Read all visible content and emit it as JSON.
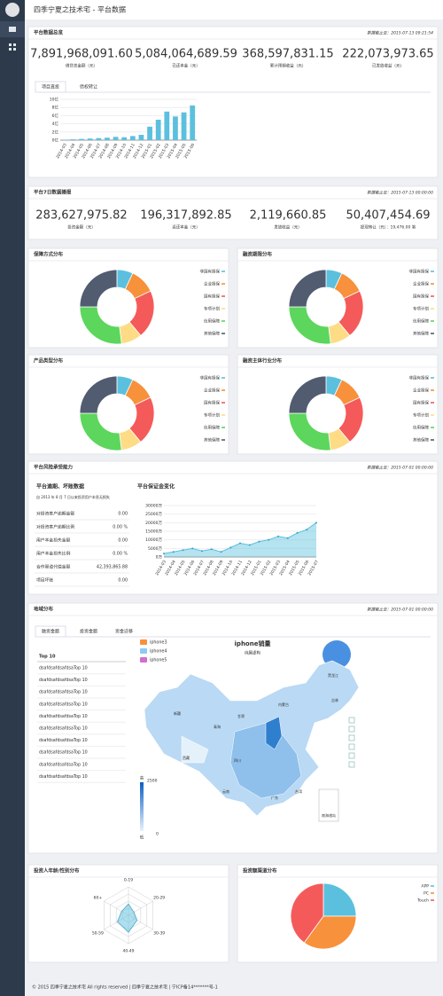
{
  "header": {
    "title": "四季宁夏之技术宅 - 平台数据"
  },
  "overview": {
    "title": "平台数据总览",
    "updated": "数据截止至：2015-07-13 09:21:54",
    "stats": [
      {
        "value": "7,891,968,091.60",
        "label": "借贷总金额（元）"
      },
      {
        "value": "5,084,064,689.59",
        "label": "已还本金（元）"
      },
      {
        "value": "368,597,831.15",
        "label": "累计预期收益（元）"
      },
      {
        "value": "222,073,973.65",
        "label": "已发放收益（元）"
      }
    ],
    "tabs": [
      "项目直投",
      "债权转让"
    ],
    "chart": {
      "type": "bar",
      "color": "#5bc0de",
      "categories": [
        "2014-03",
        "2014-04",
        "2014-05",
        "2014-06",
        "2014-07",
        "2014-08",
        "2014-09",
        "2014-10",
        "2014-11",
        "2014-12",
        "2015-01",
        "2015-02",
        "2015-03",
        "2015-04",
        "2015-05",
        "2015-06"
      ],
      "values": [
        0.1,
        0.2,
        0.3,
        0.4,
        0.5,
        0.6,
        0.8,
        0.7,
        1.0,
        1.3,
        3.3,
        5.0,
        7.0,
        5.8,
        6.8,
        8.5
      ],
      "ylim": [
        0,
        10
      ],
      "yticks": [
        {
          "value": 0,
          "label": "0亿"
        },
        {
          "value": 2,
          "label": "2亿"
        },
        {
          "value": 4,
          "label": "4亿"
        },
        {
          "value": 6,
          "label": "6亿"
        },
        {
          "value": 8,
          "label": "8亿"
        },
        {
          "value": 10,
          "label": "10亿"
        }
      ]
    }
  },
  "weekly": {
    "title": "平台7日数据播报",
    "updated": "数据截止至：2015-07-13 00:00:00",
    "stats": [
      {
        "value": "283,627,975.82",
        "label": "投资金额（元）"
      },
      {
        "value": "196,317,892.85",
        "label": "返还本金（元）"
      },
      {
        "value": "2,119,660.85",
        "label": "发放收益（元）"
      },
      {
        "value": "50,407,454.69",
        "label": "提现转让（元）：19,476.00 笔"
      }
    ]
  },
  "distributions": [
    {
      "title": "保障方式分布",
      "type": "donut",
      "categories": [
        "非国有担保",
        "企业担保",
        "国有担保",
        "专项计划",
        "信用保障",
        "其他保障"
      ],
      "values": [
        7,
        11,
        21,
        9,
        27,
        25
      ],
      "colors": [
        "#5bc0de",
        "#f7913b",
        "#f55a5a",
        "#fddc85",
        "#5cd65c",
        "#515c70"
      ]
    },
    {
      "title": "融资期限分布",
      "type": "donut",
      "categories": [
        "非国有担保",
        "企业担保",
        "国有担保",
        "专项计划",
        "信用保障",
        "其他保障"
      ],
      "values": [
        7,
        11,
        21,
        9,
        27,
        25
      ],
      "colors": [
        "#5bc0de",
        "#f7913b",
        "#f55a5a",
        "#fddc85",
        "#5cd65c",
        "#515c70"
      ]
    },
    {
      "title": "产品类型分布",
      "type": "donut",
      "categories": [
        "非国有担保",
        "企业担保",
        "国有担保",
        "专项计划",
        "信用保障",
        "其他保障"
      ],
      "values": [
        7,
        11,
        21,
        9,
        27,
        25
      ],
      "colors": [
        "#5bc0de",
        "#f7913b",
        "#f55a5a",
        "#fddc85",
        "#5cd65c",
        "#515c70"
      ]
    },
    {
      "title": "融资主体行业分布",
      "type": "donut",
      "categories": [
        "非国有担保",
        "企业担保",
        "国有担保",
        "专项计划",
        "信用保障",
        "其他保障"
      ],
      "values": [
        7,
        11,
        21,
        9,
        27,
        25
      ],
      "colors": [
        "#5bc0de",
        "#f7913b",
        "#f55a5a",
        "#fddc85",
        "#5cd65c",
        "#515c70"
      ]
    }
  ],
  "risk": {
    "title": "平台风险承受能力",
    "updated": "数据截止至：2015-07-01 00:00:00",
    "subtitle": "平台逾期、坏账数据",
    "note": "自 2013 年 8 月 7 日以来投资用户本息无损失",
    "rows": [
      [
        "对投资客户逾期金额",
        "0.00"
      ],
      [
        "对投资客户逾期比例",
        "0.00 %"
      ],
      [
        "用户本金损失金额",
        "0.00"
      ],
      [
        "用户本金损失比例",
        "0.00 %"
      ],
      [
        "合作渠道代偿金额",
        "42,393,865.88"
      ],
      [
        "项目坏账",
        "0.00"
      ]
    ],
    "chart": {
      "type": "line",
      "title": "平台保证金变化",
      "color": "#5bc0de",
      "categories": [
        "2014-03",
        "2014-04",
        "2014-05",
        "2014-06",
        "2014-07",
        "2014-08",
        "2014-09",
        "2014-10",
        "2014-11",
        "2014-12",
        "2015-01",
        "2015-02",
        "2015-03",
        "2015-04",
        "2015-05",
        "2015-06",
        "2015-07"
      ],
      "values": [
        2000,
        3000,
        4000,
        5000,
        3500,
        4500,
        3000,
        5500,
        8000,
        7000,
        9000,
        10000,
        12000,
        11000,
        14000,
        16000,
        20000
      ],
      "ylim": [
        0,
        30000
      ],
      "yticks": [
        {
          "value": 0,
          "label": "0万"
        },
        {
          "value": 5000,
          "label": "5000万"
        },
        {
          "value": 10000,
          "label": "10000万"
        },
        {
          "value": 15000,
          "label": "15000万"
        },
        {
          "value": 20000,
          "label": "20000万"
        },
        {
          "value": 25000,
          "label": "25000万"
        },
        {
          "value": 30000,
          "label": "30000万"
        }
      ]
    }
  },
  "region": {
    "title": "地域分布",
    "updated": "数据截止至：2015-07-01 00:00:00",
    "tabs": [
      "融资金额",
      "投资金额",
      "资金迁移"
    ],
    "table": {
      "header": "Top 10",
      "rows": [
        "dsafdsafdsafdsaTop 10",
        "dsafdsafdsafdsaTop 10",
        "dsafdsafdsafdsaTop 10",
        "dsafdsafdsafdsaTop 10",
        "dsafdsafdsafdsaTop 10",
        "dsafdsafdsafdsaTop 10",
        "dsafdsafdsafdsaTop 10",
        "dsafdsafdsafdsaTop 10",
        "dsafdsafdsafdsaTop 10",
        "dsafdsafdsafdsaTop 10"
      ]
    },
    "map": {
      "title": "iphone销量",
      "subtitle": "纯属虚构",
      "legend": [
        {
          "name": "iphone3",
          "color": "#f7913b"
        },
        {
          "name": "iphone4",
          "color": "#8ecbf0"
        },
        {
          "name": "iphone5",
          "color": "#d06fd0"
        }
      ],
      "visual_map": {
        "high": "高",
        "max": "2500",
        "low": "低",
        "min": "0"
      },
      "labels": [
        "新疆",
        "西藏",
        "青海",
        "甘肃",
        "内蒙古",
        "黑龙江",
        "吉林",
        "四川",
        "云南",
        "广东",
        "台湾",
        "南海诸岛"
      ]
    }
  },
  "age": {
    "title": "投资人年龄/性别分布",
    "type": "radar",
    "axes": [
      "0-19",
      "20-29",
      "30-39",
      "40-49",
      "50-59",
      "60+"
    ],
    "values": [
      40,
      22,
      35,
      60,
      45,
      28
    ],
    "rlim": [
      0,
      100
    ],
    "color": "#5bc0de"
  },
  "channel": {
    "title": "投资额渠道分布",
    "type": "pie",
    "categories": [
      "APP",
      "PC",
      "Touch"
    ],
    "values": [
      25,
      35,
      40
    ],
    "colors": [
      "#5bc0de",
      "#f7913b",
      "#f55a5a"
    ]
  },
  "footer": {
    "text": "© 2015 四季宁夏之技术宅 All rights reserved | 四季宁夏之技术宅 | 宁ICP备14*******号-1"
  }
}
